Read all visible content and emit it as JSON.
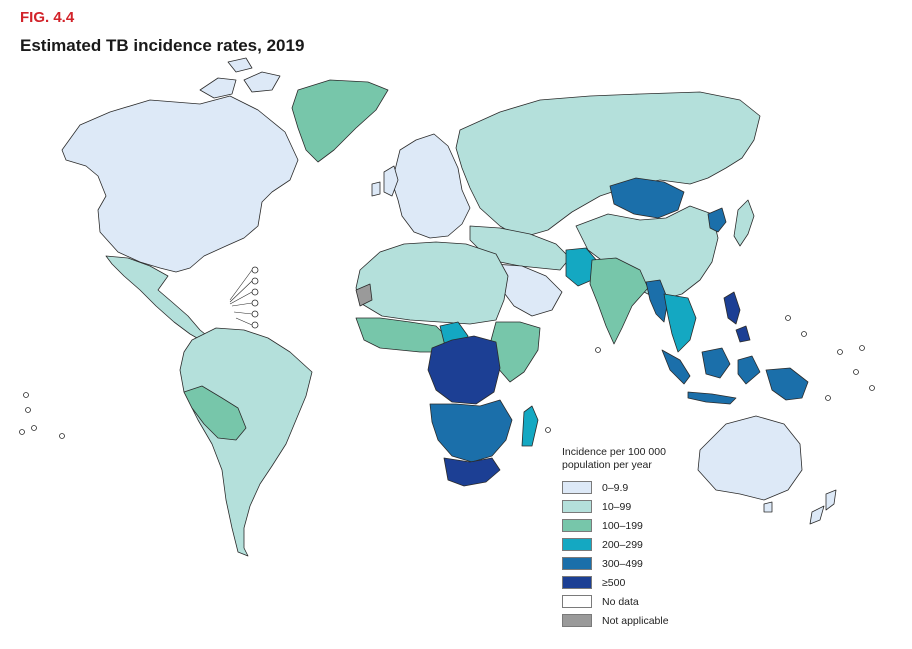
{
  "figure": {
    "label": "FIG. 4.4",
    "title": "Estimated TB incidence rates, 2019"
  },
  "legend": {
    "title": "Incidence per 100 000 population per year",
    "items": [
      {
        "label": "0–9.9",
        "color": "#dde9f7"
      },
      {
        "label": "10–99",
        "color": "#b4e0db"
      },
      {
        "label": "100–199",
        "color": "#77c6aa"
      },
      {
        "label": "200–299",
        "color": "#14a8c2"
      },
      {
        "label": "300–499",
        "color": "#1b6faa"
      },
      {
        "label": "≥500",
        "color": "#1c3f94"
      },
      {
        "label": "No data",
        "color": "#ffffff"
      },
      {
        "label": "Not applicable",
        "color": "#9a9a9a"
      }
    ]
  },
  "map_regions": [
    {
      "name": "north-america",
      "class": "0–9.9"
    },
    {
      "name": "greenland",
      "class": "100–199"
    },
    {
      "name": "central-america-mexico",
      "class": "10–99"
    },
    {
      "name": "south-america",
      "class": "10–99"
    },
    {
      "name": "peru-bolivia",
      "class": "100–199"
    },
    {
      "name": "western-europe",
      "class": "0–9.9"
    },
    {
      "name": "russia-central-asia",
      "class": "10–99"
    },
    {
      "name": "mongolia",
      "class": "300–499"
    },
    {
      "name": "china-east-asia",
      "class": "10–99"
    },
    {
      "name": "north-korea",
      "class": "300–499"
    },
    {
      "name": "south-asia",
      "class": "100–199"
    },
    {
      "name": "pakistan",
      "class": "200–299"
    },
    {
      "name": "southeast-asia",
      "class": "200–299"
    },
    {
      "name": "myanmar",
      "class": "300–499"
    },
    {
      "name": "philippines",
      "class": "≥500"
    },
    {
      "name": "indonesia",
      "class": "300–499"
    },
    {
      "name": "papua-new-guinea",
      "class": "300–499"
    },
    {
      "name": "middle-east",
      "class": "10–99"
    },
    {
      "name": "arabian-peninsula",
      "class": "0–9.9"
    },
    {
      "name": "north-africa",
      "class": "10–99"
    },
    {
      "name": "western-sahara",
      "class": "Not applicable"
    },
    {
      "name": "west-africa",
      "class": "100–199"
    },
    {
      "name": "nigeria",
      "class": "200–299"
    },
    {
      "name": "central-africa",
      "class": "≥500"
    },
    {
      "name": "east-africa",
      "class": "100–199"
    },
    {
      "name": "southern-africa",
      "class": "300–499"
    },
    {
      "name": "south-africa",
      "class": "≥500"
    },
    {
      "name": "madagascar",
      "class": "200–299"
    },
    {
      "name": "australia",
      "class": "0–9.9"
    },
    {
      "name": "new-zealand",
      "class": "0–9.9"
    }
  ]
}
